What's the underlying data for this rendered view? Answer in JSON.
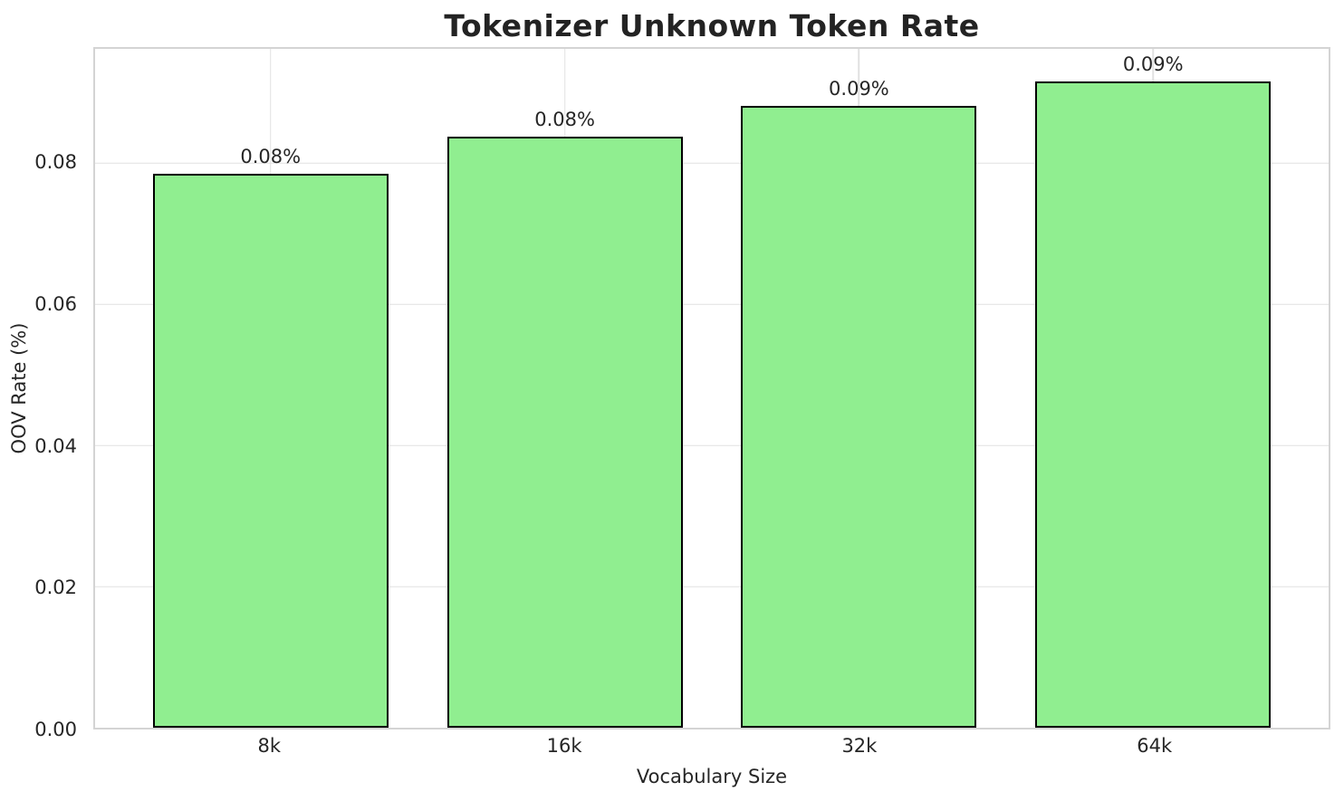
{
  "chart_data": {
    "type": "bar",
    "title": "Tokenizer Unknown Token Rate",
    "xlabel": "Vocabulary Size",
    "ylabel": "OOV Rate (%)",
    "categories": [
      "8k",
      "16k",
      "32k",
      "64k"
    ],
    "values": [
      0.0785,
      0.0837,
      0.0881,
      0.0916
    ],
    "bar_labels": [
      "0.08%",
      "0.08%",
      "0.09%",
      "0.09%"
    ],
    "ylim": [
      0,
      0.0962
    ],
    "ytick_values": [
      0.0,
      0.02,
      0.04,
      0.06,
      0.08
    ],
    "ytick_labels": [
      "0.00",
      "0.02",
      "0.04",
      "0.06",
      "0.08"
    ],
    "grid": true,
    "legend": "none",
    "bar_color": "#90EE90",
    "bar_edge_color": "#000000",
    "grid_color": "#e1e1e1",
    "spine_color": "#d4d4d4",
    "text_color": "#262626"
  }
}
